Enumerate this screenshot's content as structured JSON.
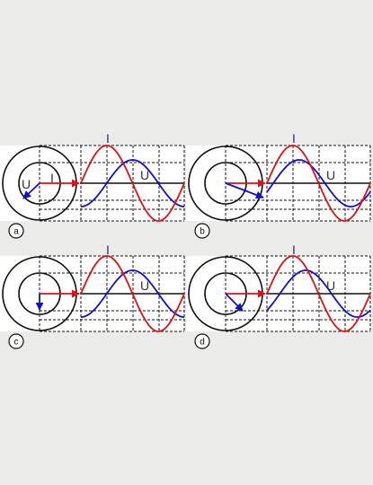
{
  "colors": {
    "background": "#ebecea",
    "panel": "#ffffff",
    "grid": "#111111",
    "current": "#e01010",
    "voltage": "#1010cc",
    "label_i": "#2b2b7a",
    "label_u": "#333333"
  },
  "panels": [
    {
      "id": "a",
      "badge": "a",
      "current_label": "I",
      "voltage_label": "U",
      "voltage_phase_deg": -90,
      "phasor_labels": {
        "u": "U",
        "i": "I"
      }
    },
    {
      "id": "b",
      "badge": "b",
      "current_label": "I",
      "voltage_label": "U",
      "voltage_phase_deg": -22,
      "phasor_labels": null
    },
    {
      "id": "c",
      "badge": "c",
      "current_label": "I",
      "voltage_label": "U",
      "voltage_phase_deg": -90,
      "phasor_labels": null
    },
    {
      "id": "d",
      "badge": "d",
      "current_label": "I",
      "voltage_label": "U",
      "voltage_phase_deg": -45,
      "phasor_labels": null
    }
  ]
}
